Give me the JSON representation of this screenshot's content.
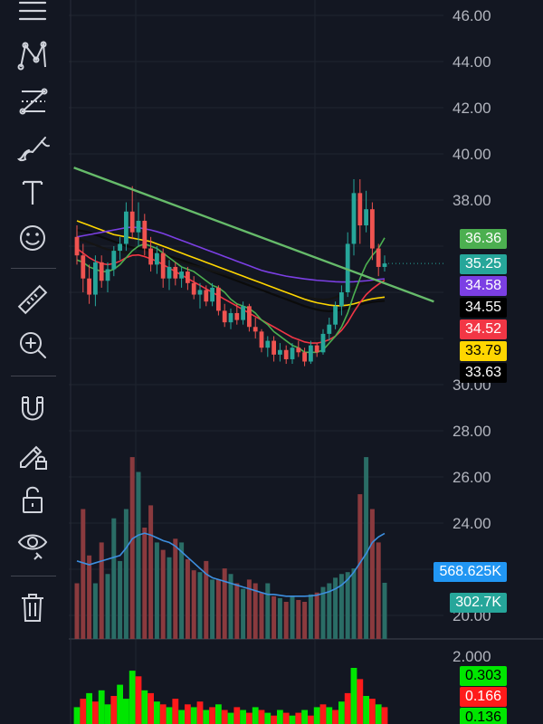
{
  "toolbar": {
    "items": [
      {
        "name": "menu-lines-icon"
      },
      {
        "name": "pattern-icon"
      },
      {
        "name": "fib-levels-icon"
      },
      {
        "name": "brush-icon"
      },
      {
        "name": "text-icon"
      },
      {
        "name": "emoji-icon"
      },
      {
        "name": "ruler-icon"
      },
      {
        "name": "zoom-in-icon"
      },
      {
        "name": "magnet-icon"
      },
      {
        "name": "lock-drawing-icon"
      },
      {
        "name": "unlock-icon"
      },
      {
        "name": "eye-icon"
      },
      {
        "name": "trash-icon"
      }
    ]
  },
  "colors": {
    "background": "#131722",
    "up": "#26a69a",
    "down": "#ef5350",
    "ma_green": "#4caf50",
    "ma_purple": "#7b3fe4",
    "ma_black": "#0b0b0b",
    "ma_red": "#f23645",
    "ma_yellow": "#ffd600",
    "trendline": "#66bb6a",
    "vol_ma": "#2962ff",
    "osc_up": "#00e600",
    "osc_down": "#ff1a1a"
  },
  "chart_data": {
    "type": "candlestick",
    "price_axis": {
      "ticks": [
        "46.00",
        "44.00",
        "42.00",
        "40.00",
        "38.00",
        "30.00",
        "28.00",
        "26.00",
        "24.00",
        "20.00"
      ],
      "range": [
        19.5,
        46.6
      ]
    },
    "last_values": {
      "ma_green": "36.36",
      "price": "35.25",
      "ma_purple": "34.58",
      "ma_black1": "34.55",
      "ma_red": "34.52",
      "ma_yellow": "33.79",
      "ma_black2": "33.63"
    },
    "volume_labels": {
      "volume_ma": "568.625K",
      "volume": "302.7K"
    },
    "oscillator": {
      "axis_tick": "2.000",
      "values": [
        "0.303",
        "0.166",
        "0.136"
      ]
    },
    "candles": [
      [
        36.4,
        36.9,
        35.2,
        35.6
      ],
      [
        35.6,
        36.1,
        34.0,
        34.6
      ],
      [
        34.6,
        35.2,
        33.5,
        33.9
      ],
      [
        33.9,
        35.6,
        33.4,
        35.3
      ],
      [
        35.3,
        35.6,
        34.2,
        34.5
      ],
      [
        34.5,
        35.3,
        34.0,
        35.0
      ],
      [
        35.0,
        36.0,
        34.7,
        35.8
      ],
      [
        35.8,
        36.4,
        35.4,
        36.1
      ],
      [
        36.1,
        37.9,
        35.8,
        37.5
      ],
      [
        37.5,
        38.6,
        36.3,
        36.6
      ],
      [
        36.6,
        37.9,
        36.0,
        37.1
      ],
      [
        37.1,
        37.4,
        35.6,
        35.9
      ],
      [
        35.9,
        36.4,
        34.9,
        35.2
      ],
      [
        35.2,
        36.0,
        34.8,
        35.7
      ],
      [
        35.7,
        35.9,
        34.2,
        34.6
      ],
      [
        34.6,
        35.4,
        34.1,
        35.1
      ],
      [
        35.1,
        35.3,
        34.3,
        34.6
      ],
      [
        34.6,
        35.1,
        34.2,
        34.9
      ],
      [
        34.9,
        35.1,
        34.1,
        34.4
      ],
      [
        34.4,
        34.7,
        33.7,
        33.9
      ],
      [
        33.9,
        34.4,
        33.3,
        34.1
      ],
      [
        34.1,
        34.3,
        33.4,
        33.6
      ],
      [
        33.6,
        34.4,
        33.4,
        34.2
      ],
      [
        34.2,
        34.3,
        33.0,
        33.2
      ],
      [
        33.2,
        33.5,
        32.5,
        32.7
      ],
      [
        32.7,
        33.3,
        32.4,
        33.1
      ],
      [
        33.1,
        33.5,
        32.6,
        32.8
      ],
      [
        32.8,
        33.6,
        32.6,
        33.4
      ],
      [
        33.4,
        33.5,
        32.3,
        32.5
      ],
      [
        32.5,
        32.9,
        32.0,
        32.3
      ],
      [
        32.3,
        32.4,
        31.4,
        31.6
      ],
      [
        31.6,
        32.1,
        31.2,
        31.9
      ],
      [
        31.9,
        32.1,
        31.0,
        31.3
      ],
      [
        31.3,
        31.8,
        31.0,
        31.5
      ],
      [
        31.5,
        31.7,
        30.9,
        31.1
      ],
      [
        31.1,
        31.8,
        30.9,
        31.6
      ],
      [
        31.6,
        31.9,
        31.2,
        31.4
      ],
      [
        31.4,
        31.6,
        30.8,
        31.0
      ],
      [
        31.0,
        31.9,
        30.9,
        31.7
      ],
      [
        31.7,
        31.8,
        31.2,
        31.4
      ],
      [
        31.4,
        32.4,
        31.3,
        32.2
      ],
      [
        32.2,
        32.9,
        31.9,
        32.6
      ],
      [
        32.6,
        33.6,
        32.4,
        33.4
      ],
      [
        33.4,
        34.3,
        33.0,
        34.0
      ],
      [
        34.0,
        36.6,
        33.8,
        36.1
      ],
      [
        36.1,
        38.9,
        35.6,
        38.3
      ],
      [
        38.3,
        38.9,
        36.1,
        36.9
      ],
      [
        36.9,
        38.4,
        36.6,
        37.6
      ],
      [
        37.6,
        37.9,
        35.4,
        35.9
      ],
      [
        35.9,
        36.1,
        34.7,
        35.1
      ],
      [
        35.1,
        35.6,
        34.9,
        35.25
      ]
    ],
    "moving_averages": {
      "ma_green": [
        35.4,
        35.3,
        35.1,
        35.0,
        34.9,
        34.9,
        35.0,
        35.2,
        35.5,
        35.8,
        36.0,
        36.1,
        36.0,
        35.9,
        35.7,
        35.5,
        35.3,
        35.1,
        35.0,
        34.9,
        34.7,
        34.5,
        34.3,
        34.2,
        34.0,
        33.7,
        33.5,
        33.4,
        33.3,
        33.1,
        32.8,
        32.6,
        32.3,
        32.1,
        31.9,
        31.7,
        31.6,
        31.4,
        31.4,
        31.4,
        31.5,
        31.8,
        32.1,
        32.5,
        33.1,
        33.9,
        34.6,
        35.2,
        35.6,
        35.9,
        36.36
      ],
      "ma_purple": [
        36.4,
        36.45,
        36.5,
        36.55,
        36.6,
        36.65,
        36.7,
        36.75,
        36.8,
        36.82,
        36.8,
        36.75,
        36.7,
        36.63,
        36.55,
        36.45,
        36.35,
        36.25,
        36.15,
        36.05,
        35.95,
        35.85,
        35.75,
        35.65,
        35.55,
        35.45,
        35.35,
        35.25,
        35.15,
        35.05,
        34.95,
        34.88,
        34.82,
        34.76,
        34.7,
        34.66,
        34.62,
        34.58,
        34.55,
        34.52,
        34.5,
        34.48,
        34.46,
        34.45,
        34.45,
        34.46,
        34.48,
        34.5,
        34.53,
        34.56,
        34.58
      ],
      "ma_black1": [
        36.3,
        36.25,
        36.15,
        36.05,
        35.95,
        35.85,
        35.8,
        35.75,
        35.72,
        35.7,
        35.65,
        35.6,
        35.55,
        35.5,
        35.45,
        35.4,
        35.35,
        35.3,
        35.22,
        35.15,
        35.08,
        35.0,
        34.92,
        34.85,
        34.78,
        34.7,
        34.62,
        34.55,
        34.48,
        34.42,
        34.35,
        34.28,
        34.2,
        34.12,
        34.05,
        33.98,
        33.9,
        33.82,
        33.75,
        33.7,
        33.68,
        33.7,
        33.78,
        33.9,
        34.05,
        34.2,
        34.32,
        34.4,
        34.47,
        34.52,
        34.55
      ],
      "ma_red": [
        35.9,
        35.7,
        35.5,
        35.35,
        35.25,
        35.2,
        35.25,
        35.35,
        35.5,
        35.6,
        35.62,
        35.55,
        35.45,
        35.35,
        35.2,
        35.05,
        34.9,
        34.75,
        34.6,
        34.45,
        34.3,
        34.15,
        34.0,
        33.85,
        33.7,
        33.55,
        33.4,
        33.25,
        33.1,
        32.95,
        32.8,
        32.65,
        32.5,
        32.35,
        32.2,
        32.05,
        31.95,
        31.85,
        31.8,
        31.8,
        31.85,
        31.95,
        32.1,
        32.35,
        32.7,
        33.15,
        33.55,
        33.9,
        34.15,
        34.35,
        34.52
      ],
      "ma_yellow": [
        37.1,
        37.0,
        36.9,
        36.8,
        36.7,
        36.6,
        36.5,
        36.45,
        36.4,
        36.35,
        36.3,
        36.25,
        36.2,
        36.1,
        36.0,
        35.9,
        35.8,
        35.7,
        35.6,
        35.5,
        35.4,
        35.3,
        35.2,
        35.1,
        35.0,
        34.9,
        34.8,
        34.7,
        34.6,
        34.5,
        34.4,
        34.3,
        34.2,
        34.1,
        34.0,
        33.9,
        33.8,
        33.7,
        33.62,
        33.55,
        33.5,
        33.45,
        33.42,
        33.42,
        33.45,
        33.5,
        33.58,
        33.66,
        33.72,
        33.76,
        33.79
      ],
      "ma_black2": [
        36.7,
        36.65,
        36.6,
        36.5,
        36.4,
        36.3,
        36.2,
        36.1,
        36.0,
        35.95,
        35.9,
        35.85,
        35.8,
        35.72,
        35.64,
        35.56,
        35.48,
        35.4,
        35.3,
        35.2,
        35.1,
        35.0,
        34.9,
        34.8,
        34.7,
        34.6,
        34.5,
        34.4,
        34.3,
        34.2,
        34.1,
        34.0,
        33.9,
        33.8,
        33.7,
        33.6,
        33.5,
        33.4,
        33.32,
        33.25,
        33.2,
        33.18,
        33.2,
        33.25,
        33.32,
        33.4,
        33.47,
        33.53,
        33.58,
        33.61,
        33.63
      ]
    },
    "trendline": {
      "from": [
        -0.5,
        39.4
      ],
      "to": [
        58.0,
        33.6
      ]
    },
    "volume": {
      "axis_max": 1000,
      "values": [
        300,
        700,
        450,
        300,
        520,
        350,
        650,
        420,
        700,
        980,
        900,
        600,
        720,
        520,
        480,
        440,
        540,
        520,
        430,
        370,
        360,
        420,
        320,
        320,
        380,
        350,
        300,
        270,
        320,
        300,
        250,
        300,
        230,
        220,
        200,
        230,
        210,
        200,
        240,
        250,
        280,
        300,
        330,
        350,
        360,
        380,
        780,
        980,
        700,
        520,
        302.7
      ],
      "ma": [
        420,
        410,
        400,
        410,
        420,
        430,
        440,
        450,
        490,
        540,
        560,
        570,
        560,
        545,
        530,
        520,
        500,
        470,
        440,
        410,
        380,
        350,
        330,
        320,
        310,
        300,
        290,
        280,
        270,
        260,
        250,
        240,
        240,
        235,
        230,
        230,
        230,
        230,
        232,
        236,
        245,
        255,
        270,
        290,
        320,
        360,
        410,
        460,
        520,
        550,
        568.625
      ]
    },
    "oscillator_bars": [
      [
        1,
        0.3
      ],
      [
        0,
        0.45
      ],
      [
        1,
        0.55
      ],
      [
        0,
        0.4
      ],
      [
        1,
        0.6
      ],
      [
        1,
        0.35
      ],
      [
        0,
        0.5
      ],
      [
        1,
        0.7
      ],
      [
        1,
        0.45
      ],
      [
        1,
        0.95
      ],
      [
        0,
        0.85
      ],
      [
        1,
        0.6
      ],
      [
        0,
        0.55
      ],
      [
        1,
        0.4
      ],
      [
        0,
        0.35
      ],
      [
        1,
        0.3
      ],
      [
        0,
        0.45
      ],
      [
        1,
        0.25
      ],
      [
        0,
        0.35
      ],
      [
        1,
        0.3
      ],
      [
        0,
        0.4
      ],
      [
        1,
        0.25
      ],
      [
        0,
        0.3
      ],
      [
        1,
        0.35
      ],
      [
        0,
        0.25
      ],
      [
        1,
        0.2
      ],
      [
        0,
        0.3
      ],
      [
        1,
        0.25
      ],
      [
        0,
        0.2
      ],
      [
        1,
        0.3
      ],
      [
        0,
        0.25
      ],
      [
        1,
        0.2
      ],
      [
        0,
        0.15
      ],
      [
        1,
        0.25
      ],
      [
        0,
        0.2
      ],
      [
        1,
        0.15
      ],
      [
        0,
        0.2
      ],
      [
        1,
        0.25
      ],
      [
        0,
        0.15
      ],
      [
        1,
        0.3
      ],
      [
        0,
        0.35
      ],
      [
        1,
        0.3
      ],
      [
        0,
        0.25
      ],
      [
        1,
        0.4
      ],
      [
        0,
        0.55
      ],
      [
        1,
        1.0
      ],
      [
        0,
        0.8
      ],
      [
        1,
        0.5
      ],
      [
        0,
        0.45
      ],
      [
        1,
        0.35
      ],
      [
        0,
        0.3
      ]
    ]
  }
}
